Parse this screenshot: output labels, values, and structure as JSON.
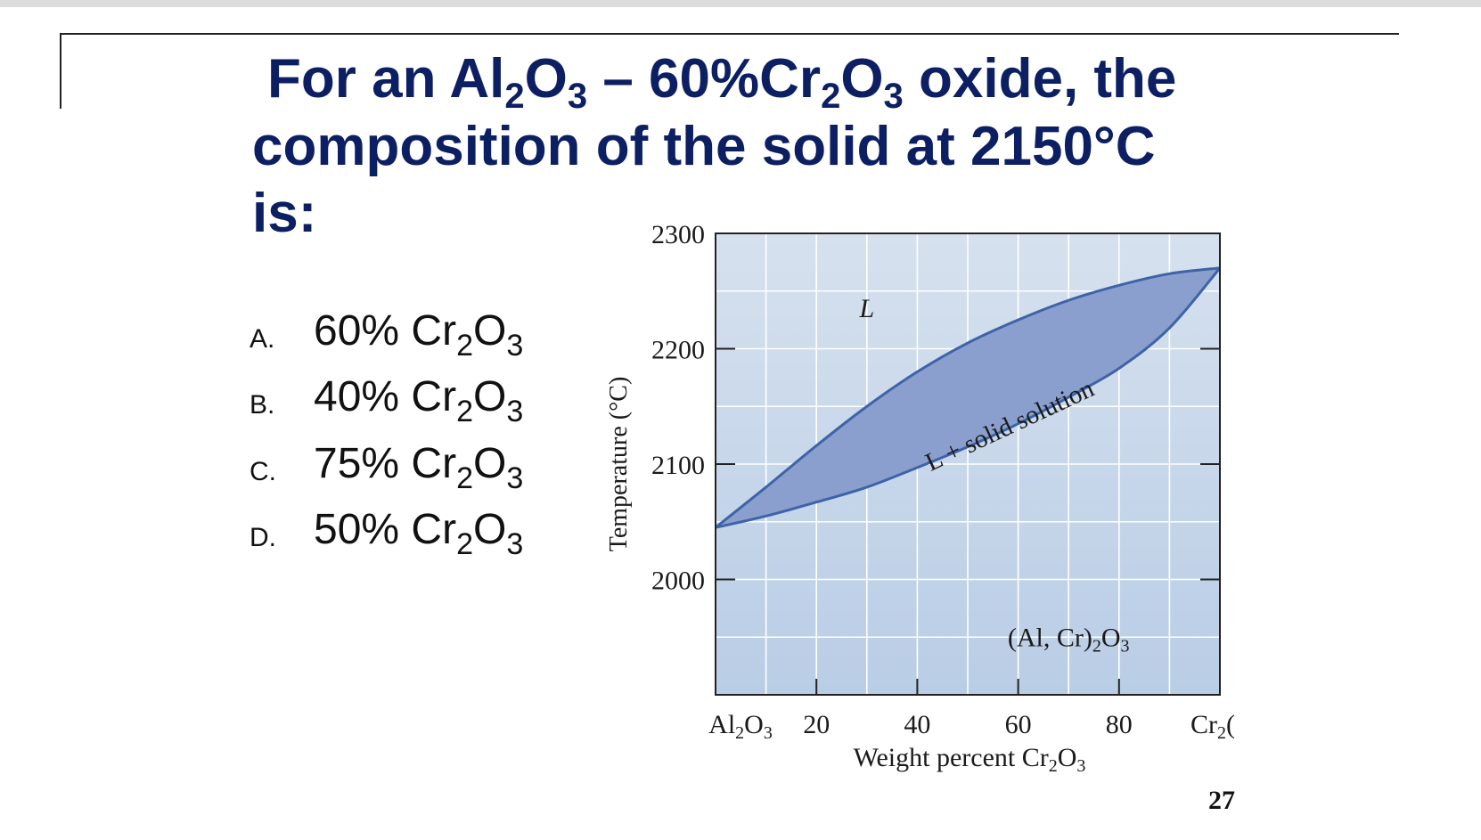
{
  "slide": {
    "title": {
      "line1": {
        "pre": "For an Al",
        "sub1": "2",
        "mid1": "O",
        "sub2": "3",
        "mid2": " – 60%Cr",
        "sub3": "2",
        "mid3": "O",
        "sub4": "3",
        "post": " oxide, the"
      },
      "line2": "composition of the solid at  2150°C",
      "line3": "is:"
    },
    "options": [
      {
        "letter": "A.",
        "value": "60% Cr",
        "sub1": "2",
        "o": "O",
        "sub2": "3"
      },
      {
        "letter": "B.",
        "value": "40% Cr",
        "sub1": "2",
        "o": "O",
        "sub2": "3"
      },
      {
        "letter": "C.",
        "value": "75% Cr",
        "sub1": "2",
        "o": "O",
        "sub2": "3"
      },
      {
        "letter": "D.",
        "value": "50% Cr",
        "sub1": "2",
        "o": "O",
        "sub2": "3"
      }
    ],
    "page_number": "27"
  },
  "chart_data": {
    "type": "line",
    "ylabel": "Temperature (°C)",
    "xlabel": {
      "pre": "Weight percent Cr",
      "sub1": "2",
      "mid": "O",
      "sub2": "3"
    },
    "xlim": [
      0,
      100
    ],
    "ylim": [
      1900,
      2300
    ],
    "x_ticks": [
      0,
      20,
      40,
      60,
      80,
      100
    ],
    "x_tick_labels": [
      {
        "pre": "Al",
        "sub1": "2",
        "mid": "O",
        "sub2": "3"
      },
      {
        "pre": "20"
      },
      {
        "pre": "40"
      },
      {
        "pre": "60"
      },
      {
        "pre": "80"
      },
      {
        "pre": "Cr",
        "sub1": "2",
        "mid": "("
      }
    ],
    "y_ticks": [
      2000,
      2100,
      2200,
      2300
    ],
    "y_tick_labels": [
      "2000",
      "2100",
      "2200",
      "2300"
    ],
    "grid": true,
    "region_labels": [
      {
        "text": "L",
        "x": 30,
        "y": 2235
      },
      {
        "text": "L + solid solution",
        "x": 59,
        "y": 2127
      },
      {
        "text": "(Al, Cr)",
        "sub": "2",
        "post": "O",
        "sub2": "3",
        "x": 70,
        "y": 1950
      }
    ],
    "series": [
      {
        "x": [
          0,
          10,
          20,
          30,
          40,
          50,
          60,
          70,
          80,
          90,
          100
        ],
        "y": [
          2045,
          2080,
          2116,
          2150,
          2180,
          2205,
          2225,
          2242,
          2255,
          2265,
          2270
        ]
      },
      {
        "x": [
          0,
          10,
          20,
          30,
          40,
          50,
          60,
          70,
          80,
          90,
          100
        ],
        "y": [
          2045,
          2055,
          2067,
          2080,
          2097,
          2115,
          2135,
          2158,
          2183,
          2218,
          2270
        ]
      }
    ],
    "colors": {
      "background_top": "#d6e1ee",
      "background_bottom": "#b9cde6",
      "two_phase_fill": "#8a9fcd",
      "boundary_line": "#3e63a8",
      "grid": "#ffffff"
    }
  }
}
